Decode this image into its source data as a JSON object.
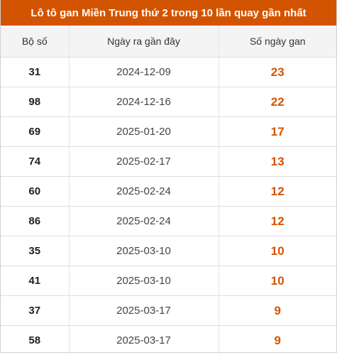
{
  "title": "Lô tô gan Miền Trung thứ 2 trong 10 lần quay gần nhất",
  "accent_color": "#d35400",
  "headers": {
    "number": "Bộ số",
    "last_date": "Ngày ra gần đây",
    "days_gan": "Số ngày gan"
  },
  "rows": [
    {
      "number": "31",
      "last_date": "2024-12-09",
      "days_gan": "23"
    },
    {
      "number": "98",
      "last_date": "2024-12-16",
      "days_gan": "22"
    },
    {
      "number": "69",
      "last_date": "2025-01-20",
      "days_gan": "17"
    },
    {
      "number": "74",
      "last_date": "2025-02-17",
      "days_gan": "13"
    },
    {
      "number": "60",
      "last_date": "2025-02-24",
      "days_gan": "12"
    },
    {
      "number": "86",
      "last_date": "2025-02-24",
      "days_gan": "12"
    },
    {
      "number": "35",
      "last_date": "2025-03-10",
      "days_gan": "10"
    },
    {
      "number": "41",
      "last_date": "2025-03-10",
      "days_gan": "10"
    },
    {
      "number": "37",
      "last_date": "2025-03-17",
      "days_gan": "9"
    },
    {
      "number": "58",
      "last_date": "2025-03-17",
      "days_gan": "9"
    }
  ]
}
